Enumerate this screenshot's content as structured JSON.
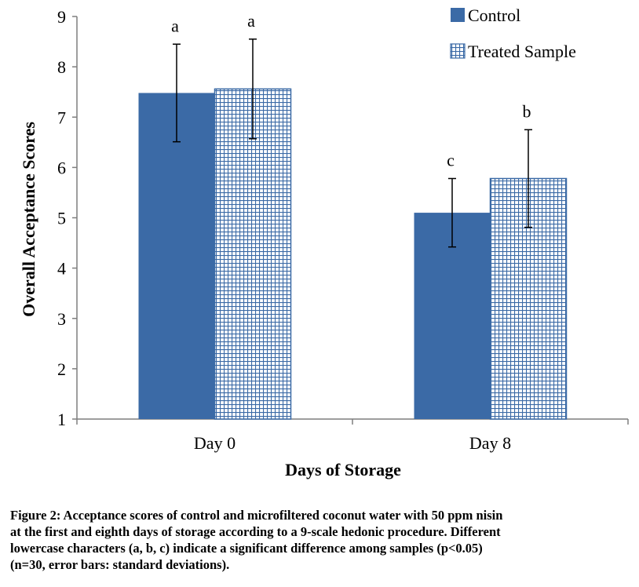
{
  "chart_data": {
    "type": "bar",
    "categories": [
      "Day 0",
      "Day 8"
    ],
    "series": [
      {
        "name": "Control",
        "values": [
          7.48,
          5.1
        ],
        "error": [
          0.97,
          0.68
        ],
        "significance": [
          "a",
          "c"
        ],
        "color": "#3b6aa6",
        "pattern": "solid"
      },
      {
        "name": "Treated Sample",
        "values": [
          7.56,
          5.78
        ],
        "error": [
          0.99,
          0.97
        ],
        "significance": [
          "a",
          "b"
        ],
        "color": "#3b6aa6",
        "pattern": "grid"
      }
    ],
    "title": "",
    "xlabel": "Days of Storage",
    "ylabel": "Overall Acceptance Scores",
    "ylim": [
      1,
      9
    ],
    "yticks": [
      "1",
      "2",
      "3",
      "4",
      "5",
      "6",
      "7",
      "8",
      "9"
    ],
    "grid": false,
    "legend_position": "top-right"
  },
  "caption": {
    "lines": [
      "Figure 2: Acceptance scores of control and microfiltered  coconut water with 50 ppm nisin",
      "at the first and eighth days of storage according to a 9-scale hedonic procedure. Different",
      "lowercase characters (a, b, c) indicate a significant difference among samples (p<0.05)",
      "(n=30, error bars:  standard deviations)."
    ]
  }
}
